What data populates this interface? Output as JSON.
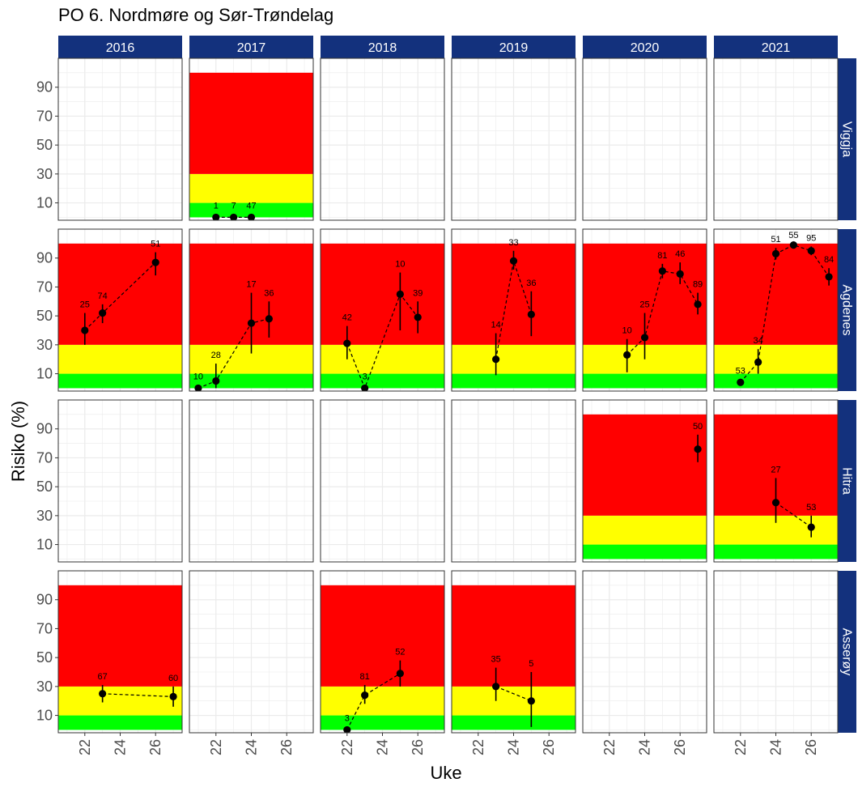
{
  "title": "PO 6. Nordmøre og Sør-Trøndelag",
  "colors": {
    "strip_bg": "#13317d",
    "strip_text": "#ffffff",
    "red_zone": "#ff0000",
    "yellow_zone": "#ffff00",
    "green_zone": "#00ff00",
    "grid": "#ebebeb",
    "panel_border": "#333333",
    "point": "#000000"
  },
  "chart_data": {
    "type": "scatter",
    "facets": {
      "columns": [
        "2016",
        "2017",
        "2018",
        "2019",
        "2020",
        "2021"
      ],
      "rows": [
        "Viggja",
        "Agdenes",
        "Hitra",
        "Asserøy"
      ]
    },
    "xlabel": "Uke",
    "ylabel": "Risiko (%)",
    "xlim": [
      20.5,
      27.5
    ],
    "ylim": [
      -2,
      110
    ],
    "x_ticks": [
      22,
      24,
      26
    ],
    "y_ticks": [
      10,
      30,
      50,
      70,
      90
    ],
    "zones": [
      {
        "name": "green",
        "from": 0,
        "to": 10
      },
      {
        "name": "yellow",
        "from": 10,
        "to": 30
      },
      {
        "name": "red",
        "from": 30,
        "to": 100
      }
    ],
    "grid": true,
    "line_style": "dashed",
    "panels": [
      {
        "row": "Viggja",
        "col": "2017",
        "zones": true,
        "points": [
          {
            "x": 22,
            "y": 0,
            "label": "1"
          },
          {
            "x": 23,
            "y": 0,
            "label": "7"
          },
          {
            "x": 24,
            "y": 0,
            "label": "47"
          }
        ]
      },
      {
        "row": "Agdenes",
        "col": "2016",
        "zones": true,
        "points": [
          {
            "x": 22,
            "y": 40,
            "lo": 30,
            "hi": 52,
            "label": "25"
          },
          {
            "x": 23,
            "y": 52,
            "lo": 45,
            "hi": 58,
            "label": "74"
          },
          {
            "x": 26,
            "y": 87,
            "lo": 78,
            "hi": 94,
            "label": "51"
          }
        ]
      },
      {
        "row": "Agdenes",
        "col": "2017",
        "zones": true,
        "points": [
          {
            "x": 21,
            "y": 0,
            "label": "10"
          },
          {
            "x": 22,
            "y": 5,
            "lo": 0,
            "hi": 17,
            "label": "28"
          },
          {
            "x": 24,
            "y": 45,
            "lo": 24,
            "hi": 66,
            "label": "17"
          },
          {
            "x": 25,
            "y": 48,
            "lo": 35,
            "hi": 60,
            "label": "36"
          }
        ]
      },
      {
        "row": "Agdenes",
        "col": "2018",
        "zones": true,
        "points": [
          {
            "x": 22,
            "y": 31,
            "lo": 20,
            "hi": 43,
            "label": "42"
          },
          {
            "x": 23,
            "y": 0,
            "label": "3"
          },
          {
            "x": 25,
            "y": 65,
            "lo": 40,
            "hi": 80,
            "label": "10"
          },
          {
            "x": 26,
            "y": 49,
            "lo": 38,
            "hi": 60,
            "label": "39"
          }
        ]
      },
      {
        "row": "Agdenes",
        "col": "2019",
        "zones": true,
        "points": [
          {
            "x": 23,
            "y": 20,
            "lo": 9,
            "hi": 38,
            "label": "14"
          },
          {
            "x": 24,
            "y": 88,
            "lo": 82,
            "hi": 95,
            "label": "33"
          },
          {
            "x": 25,
            "y": 51,
            "lo": 36,
            "hi": 67,
            "label": "36"
          }
        ]
      },
      {
        "row": "Agdenes",
        "col": "2020",
        "zones": true,
        "points": [
          {
            "x": 23,
            "y": 23,
            "lo": 11,
            "hi": 34,
            "label": "10"
          },
          {
            "x": 24,
            "y": 35,
            "lo": 20,
            "hi": 52,
            "label": "25"
          },
          {
            "x": 25,
            "y": 81,
            "lo": 76,
            "hi": 86,
            "label": "81"
          },
          {
            "x": 26,
            "y": 79,
            "lo": 72,
            "hi": 87,
            "label": "46"
          },
          {
            "x": 27,
            "y": 58,
            "lo": 51,
            "hi": 66,
            "label": "89"
          }
        ]
      },
      {
        "row": "Agdenes",
        "col": "2021",
        "zones": true,
        "points": [
          {
            "x": 22,
            "y": 4,
            "lo": 2,
            "hi": 6,
            "label": "53"
          },
          {
            "x": 23,
            "y": 18,
            "lo": 10,
            "hi": 27,
            "label": "34"
          },
          {
            "x": 24,
            "y": 93,
            "lo": 89,
            "hi": 97,
            "label": "51"
          },
          {
            "x": 25,
            "y": 99,
            "lo": 97,
            "hi": 100,
            "label": "55"
          },
          {
            "x": 26,
            "y": 95,
            "lo": 92,
            "hi": 98,
            "label": "95"
          },
          {
            "x": 27,
            "y": 77,
            "lo": 71,
            "hi": 83,
            "label": "84"
          }
        ]
      },
      {
        "row": "Hitra",
        "col": "2020",
        "zones": true,
        "points": [
          {
            "x": 27,
            "y": 76,
            "lo": 67,
            "hi": 86,
            "label": "50"
          }
        ]
      },
      {
        "row": "Hitra",
        "col": "2021",
        "zones": true,
        "points": [
          {
            "x": 24,
            "y": 39,
            "lo": 25,
            "hi": 56,
            "label": "27"
          },
          {
            "x": 26,
            "y": 22,
            "lo": 15,
            "hi": 30,
            "label": "53"
          }
        ]
      },
      {
        "row": "Asserøy",
        "col": "2016",
        "zones": true,
        "points": [
          {
            "x": 23,
            "y": 25,
            "lo": 19,
            "hi": 31,
            "label": "67"
          },
          {
            "x": 27,
            "y": 23,
            "lo": 16,
            "hi": 30,
            "label": "60"
          }
        ]
      },
      {
        "row": "Asserøy",
        "col": "2018",
        "zones": true,
        "points": [
          {
            "x": 22,
            "y": 0,
            "label": "3"
          },
          {
            "x": 23,
            "y": 24,
            "lo": 18,
            "hi": 31,
            "label": "81"
          },
          {
            "x": 25,
            "y": 39,
            "lo": 30,
            "hi": 48,
            "label": "52"
          }
        ]
      },
      {
        "row": "Asserøy",
        "col": "2019",
        "zones": true,
        "points": [
          {
            "x": 23,
            "y": 30,
            "lo": 20,
            "hi": 43,
            "label": "35"
          },
          {
            "x": 25,
            "y": 20,
            "lo": 2,
            "hi": 40,
            "label": "5"
          }
        ]
      }
    ]
  }
}
